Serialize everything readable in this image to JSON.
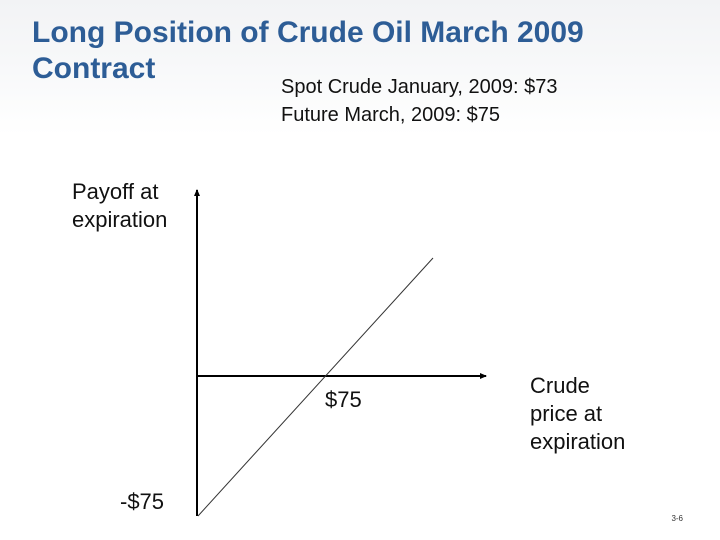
{
  "title": {
    "line1": "Long Position of Crude Oil March 2009",
    "line2": "Contract"
  },
  "spot_info": {
    "line1": "Spot Crude January, 2009: $73",
    "line2": "Future March, 2009: $75"
  },
  "diagram": {
    "y_axis_label": {
      "line1": "Payoff at",
      "line2": "expiration"
    },
    "x_axis_label": {
      "line1": "Crude",
      "line2": "price at",
      "line3": "expiration"
    },
    "strike_label": "$75",
    "negative_payoff_label": "-$75"
  },
  "slide_number": "3-6",
  "colors": {
    "title": "#2d5d96",
    "text": "#111111",
    "axis": "#000000",
    "payoff_line": "#333333"
  }
}
